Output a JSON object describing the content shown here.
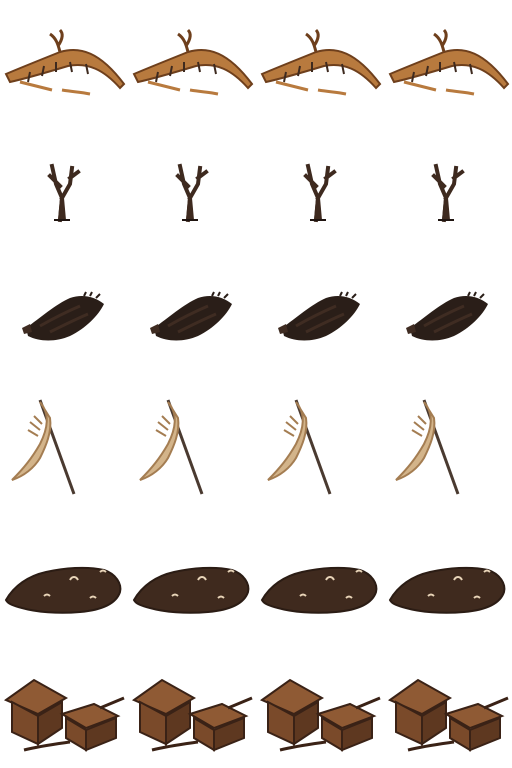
{
  "sprite_sheet": {
    "columns": 4,
    "rows": [
      {
        "name": "fallen-branch",
        "frames": 4
      },
      {
        "name": "dead-tree",
        "frames": 4
      },
      {
        "name": "dark-rubble",
        "frames": 4
      },
      {
        "name": "tattered-banner",
        "frames": 4
      },
      {
        "name": "mud-patch",
        "frames": 4
      },
      {
        "name": "wooden-huts",
        "frames": 4
      }
    ]
  },
  "colors": {
    "background": "#ffffff",
    "branch_light": "#b87a3e",
    "branch_dark": "#6e3f1c",
    "branch_highlight": "#d9a066",
    "tree_trunk": "#3e2a1f",
    "tree_outline": "#1f1410",
    "rubble_dark": "#2a1e18",
    "rubble_mid": "#3f2c22",
    "banner_cloth": "#d3b48a",
    "banner_shadow": "#a47d52",
    "banner_pole": "#4a3a30",
    "mud_fill": "#3f2a1e",
    "mud_edge": "#2b1c14",
    "mud_pebble": "#e8d4b8",
    "hut_wall": "#7a4a2a",
    "hut_roof": "#8f5a34",
    "hut_dark": "#3a2216"
  }
}
